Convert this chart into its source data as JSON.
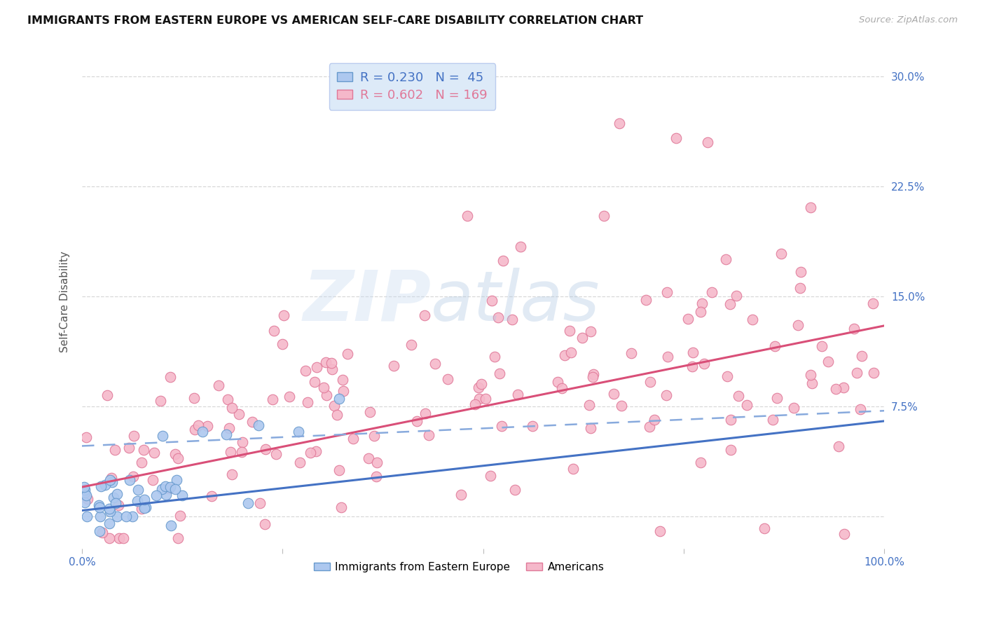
{
  "title": "IMMIGRANTS FROM EASTERN EUROPE VS AMERICAN SELF-CARE DISABILITY CORRELATION CHART",
  "source": "Source: ZipAtlas.com",
  "ylabel": "Self-Care Disability",
  "ytick_vals": [
    0.0,
    0.075,
    0.15,
    0.225,
    0.3
  ],
  "ytick_labels": [
    "",
    "7.5%",
    "15.0%",
    "22.5%",
    "30.0%"
  ],
  "xlim": [
    0.0,
    1.0
  ],
  "ylim": [
    -0.022,
    0.315
  ],
  "blue_R": 0.23,
  "blue_N": 45,
  "pink_R": 0.602,
  "pink_N": 169,
  "blue_fill": "#adc8ef",
  "blue_edge": "#6699cc",
  "pink_fill": "#f5b8ca",
  "pink_edge": "#e07898",
  "blue_line_color": "#4472c4",
  "pink_line_color": "#d94f78",
  "dash_line_color": "#88aadd",
  "bg_color": "#ffffff",
  "grid_color": "#cccccc",
  "title_color": "#111111",
  "source_color": "#aaaaaa",
  "ylabel_color": "#555555",
  "tick_color": "#4472c4",
  "legend_bg": "#ddeaf8",
  "legend_border": "#bbccee",
  "marker_size": 110,
  "marker_lw": 0.8
}
